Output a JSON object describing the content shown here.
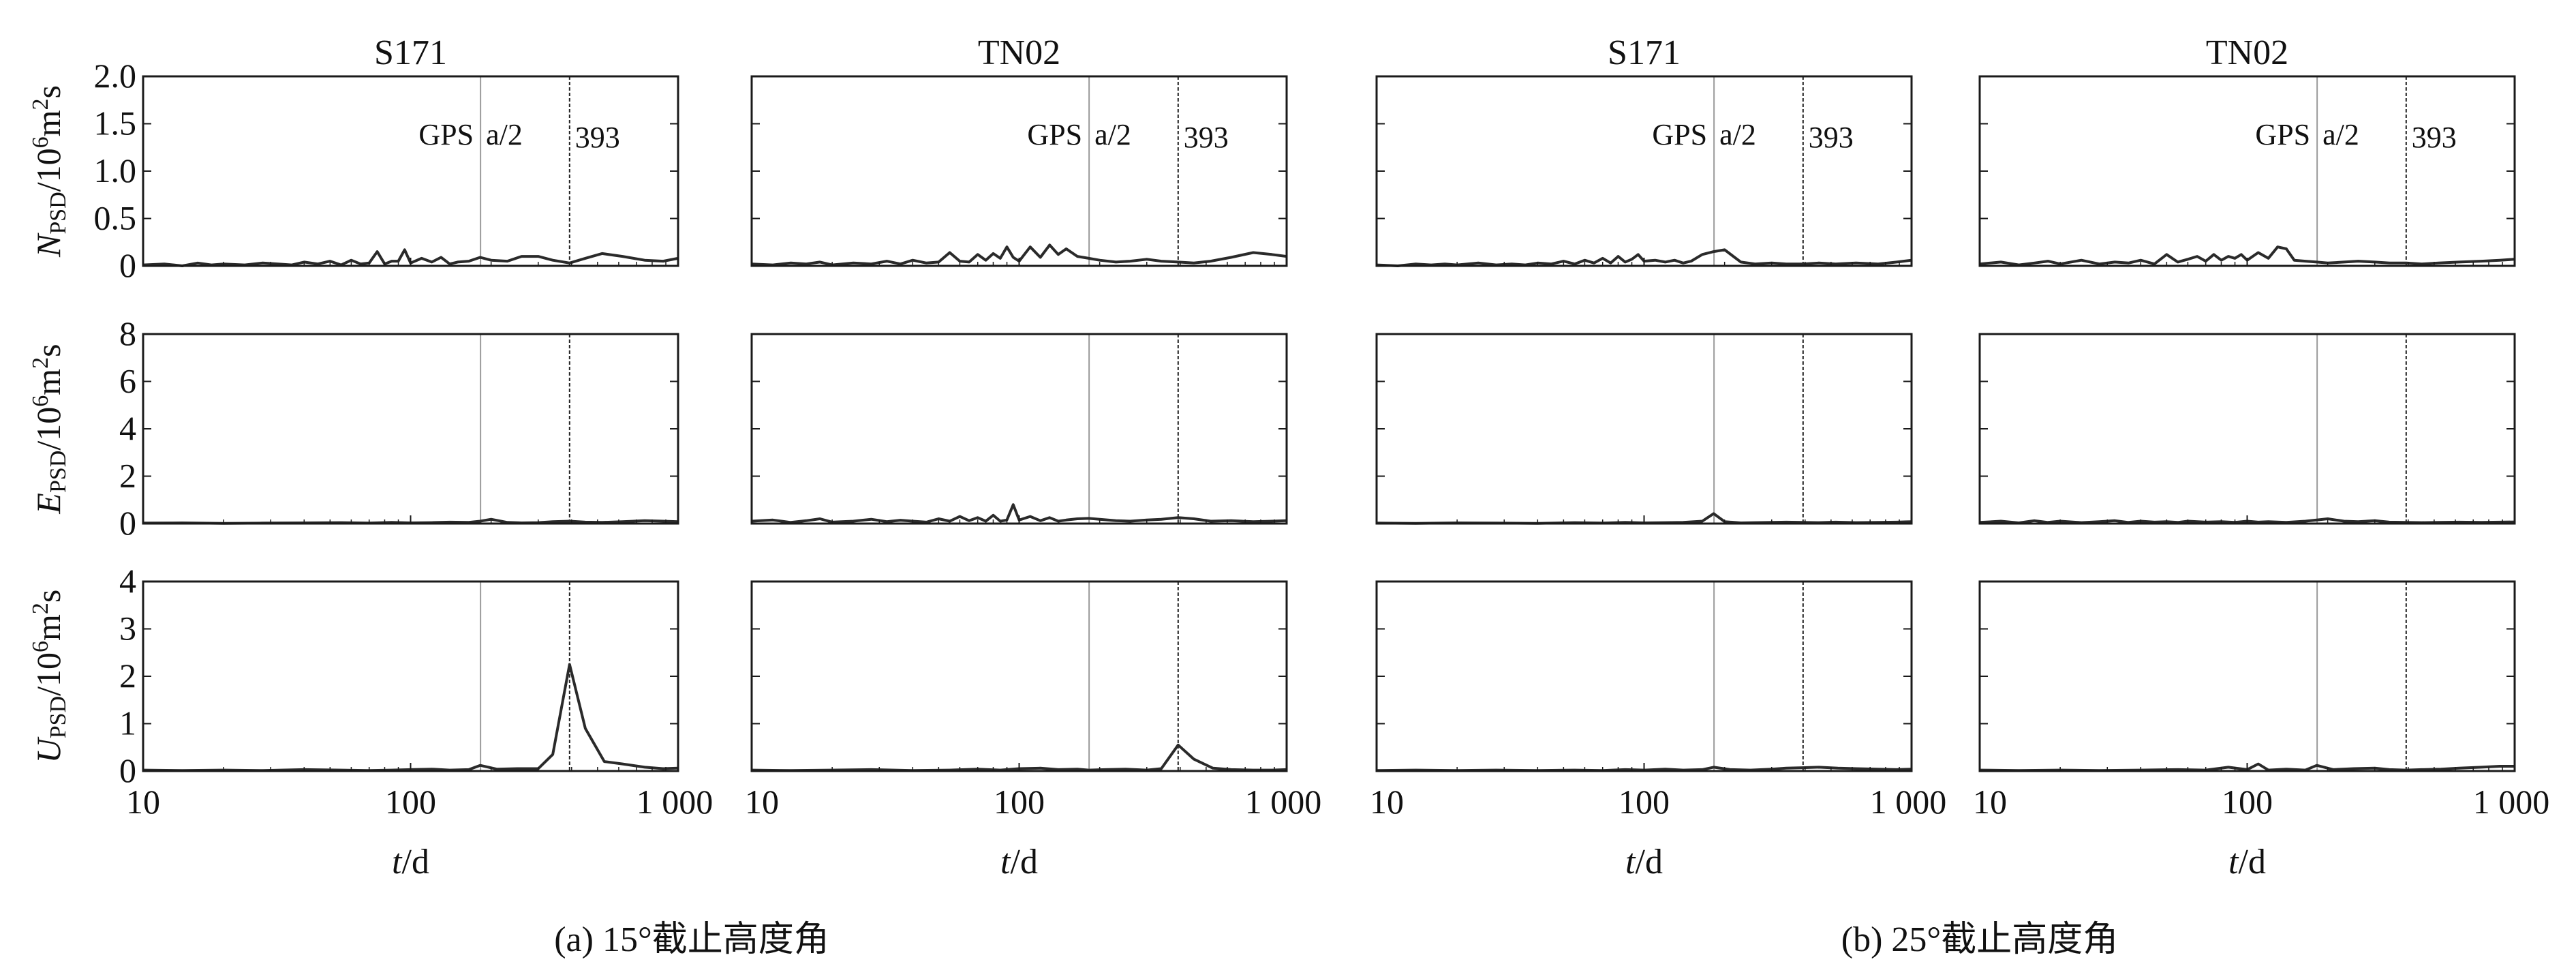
{
  "figure": {
    "caption_a": "(a) 15°截止高度角",
    "caption_b": "(b) 25°截止高度角",
    "x_axis_title": "t/d",
    "row_labels": [
      {
        "main": "N",
        "sub": "PSD",
        "rest": "/10",
        "sup": "6",
        "unit": "m",
        "unit_sup": "2",
        "tail": "s"
      },
      {
        "main": "E",
        "sub": "PSD",
        "rest": "/10",
        "sup": "6",
        "unit": "m",
        "unit_sup": "2",
        "tail": "s"
      },
      {
        "main": "U",
        "sub": "PSD",
        "rest": "/10",
        "sup": "6",
        "unit": "m",
        "unit_sup": "2",
        "tail": "s"
      }
    ],
    "annotations": {
      "gps": "GPS",
      "half": "a/2",
      "period": "393"
    },
    "colors": {
      "line": "#2a2a2a",
      "gps_half_line": "#9a9a9a",
      "period_line": "#222222",
      "axis": "#1a1a1a"
    }
  },
  "chart_data": [
    {
      "type": "line",
      "group": "a",
      "station": "S171",
      "row": "N",
      "x_scale": "log",
      "xlim": [
        10,
        1000
      ],
      "ylim": [
        0,
        2.0
      ],
      "yticks": [
        "0",
        "0.5",
        "1.0",
        "1.5",
        "2.0"
      ],
      "xticks": [
        "10",
        "100",
        "1 000"
      ],
      "xlabel": "t/d",
      "vlines": [
        182.6,
        393
      ],
      "x": [
        10,
        12,
        14,
        16,
        18,
        20,
        24,
        28,
        32,
        36,
        40,
        45,
        50,
        55,
        60,
        65,
        70,
        75,
        80,
        85,
        90,
        95,
        100,
        110,
        120,
        130,
        140,
        150,
        165,
        182,
        200,
        230,
        260,
        300,
        340,
        393,
        450,
        520,
        620,
        750,
        880,
        1000
      ],
      "y": [
        0.01,
        0.02,
        0.0,
        0.03,
        0.01,
        0.02,
        0.01,
        0.03,
        0.02,
        0.01,
        0.04,
        0.02,
        0.05,
        0.01,
        0.06,
        0.02,
        0.03,
        0.15,
        0.02,
        0.05,
        0.05,
        0.17,
        0.03,
        0.08,
        0.04,
        0.09,
        0.02,
        0.04,
        0.05,
        0.09,
        0.06,
        0.05,
        0.1,
        0.1,
        0.06,
        0.03,
        0.08,
        0.13,
        0.1,
        0.06,
        0.05,
        0.08
      ]
    },
    {
      "type": "line",
      "group": "a",
      "station": "TN02",
      "row": "N",
      "x_scale": "log",
      "xlim": [
        10,
        1000
      ],
      "ylim": [
        0,
        2.0
      ],
      "yticks": [
        "0",
        "0.5",
        "1.0",
        "1.5",
        "2.0"
      ],
      "xticks": [
        "10",
        "100",
        "1 000"
      ],
      "xlabel": "t/d",
      "vlines": [
        182.6,
        393
      ],
      "x": [
        10,
        12,
        14,
        16,
        18,
        20,
        24,
        28,
        32,
        36,
        40,
        45,
        50,
        55,
        60,
        65,
        70,
        75,
        80,
        85,
        90,
        95,
        100,
        110,
        120,
        130,
        140,
        150,
        165,
        182,
        200,
        230,
        260,
        300,
        340,
        393,
        450,
        520,
        620,
        750,
        880,
        1000
      ],
      "y": [
        0.02,
        0.01,
        0.03,
        0.02,
        0.04,
        0.01,
        0.03,
        0.02,
        0.05,
        0.02,
        0.06,
        0.03,
        0.04,
        0.14,
        0.05,
        0.04,
        0.12,
        0.06,
        0.13,
        0.08,
        0.2,
        0.09,
        0.05,
        0.2,
        0.09,
        0.22,
        0.12,
        0.18,
        0.1,
        0.08,
        0.06,
        0.04,
        0.05,
        0.07,
        0.05,
        0.04,
        0.03,
        0.05,
        0.09,
        0.14,
        0.12,
        0.1
      ]
    },
    {
      "type": "line",
      "group": "b",
      "station": "S171",
      "row": "N",
      "x_scale": "log",
      "xlim": [
        10,
        1000
      ],
      "ylim": [
        0,
        2.0
      ],
      "yticks": [
        "0",
        "0.5",
        "1.0",
        "1.5",
        "2.0"
      ],
      "xticks": [
        "10",
        "100",
        "1 000"
      ],
      "xlabel": "t/d",
      "vlines": [
        182.6,
        393
      ],
      "x": [
        10,
        12,
        14,
        16,
        18,
        20,
        24,
        28,
        32,
        36,
        40,
        45,
        50,
        55,
        60,
        65,
        70,
        75,
        80,
        85,
        90,
        95,
        100,
        110,
        120,
        130,
        140,
        150,
        165,
        182,
        200,
        230,
        260,
        300,
        340,
        393,
        450,
        520,
        620,
        750,
        880,
        1000
      ],
      "y": [
        0.01,
        0.0,
        0.02,
        0.01,
        0.02,
        0.01,
        0.03,
        0.01,
        0.02,
        0.01,
        0.03,
        0.02,
        0.05,
        0.02,
        0.06,
        0.03,
        0.08,
        0.03,
        0.1,
        0.04,
        0.07,
        0.12,
        0.05,
        0.06,
        0.04,
        0.06,
        0.03,
        0.05,
        0.12,
        0.15,
        0.17,
        0.04,
        0.02,
        0.03,
        0.02,
        0.02,
        0.03,
        0.02,
        0.03,
        0.02,
        0.04,
        0.06
      ]
    },
    {
      "type": "line",
      "group": "b",
      "station": "TN02",
      "row": "N",
      "x_scale": "log",
      "xlim": [
        10,
        1000
      ],
      "ylim": [
        0,
        2.0
      ],
      "yticks": [
        "0",
        "0.5",
        "1.0",
        "1.5",
        "2.0"
      ],
      "xticks": [
        "10",
        "100",
        "1 000"
      ],
      "xlabel": "t/d",
      "vlines": [
        182.6,
        393
      ],
      "x": [
        10,
        12,
        14,
        16,
        18,
        20,
        24,
        28,
        32,
        36,
        40,
        45,
        50,
        55,
        60,
        65,
        70,
        75,
        80,
        85,
        90,
        95,
        100,
        110,
        120,
        130,
        140,
        150,
        165,
        182,
        200,
        230,
        260,
        300,
        340,
        393,
        450,
        520,
        620,
        750,
        880,
        1000
      ],
      "y": [
        0.02,
        0.04,
        0.01,
        0.03,
        0.05,
        0.02,
        0.06,
        0.02,
        0.04,
        0.03,
        0.06,
        0.02,
        0.12,
        0.04,
        0.07,
        0.1,
        0.05,
        0.12,
        0.06,
        0.1,
        0.08,
        0.12,
        0.06,
        0.14,
        0.08,
        0.2,
        0.18,
        0.06,
        0.05,
        0.04,
        0.03,
        0.04,
        0.05,
        0.04,
        0.03,
        0.03,
        0.02,
        0.03,
        0.04,
        0.05,
        0.06,
        0.07
      ]
    },
    {
      "type": "line",
      "group": "a",
      "station": "S171",
      "row": "E",
      "x_scale": "log",
      "xlim": [
        10,
        1000
      ],
      "ylim": [
        0,
        8
      ],
      "yticks": [
        "0",
        "2",
        "4",
        "6",
        "8"
      ],
      "xticks": [
        "10",
        "100",
        "1 000"
      ],
      "xlabel": "t/d",
      "vlines": [
        182.6,
        393
      ],
      "x": [
        10,
        14,
        20,
        28,
        40,
        55,
        70,
        85,
        100,
        120,
        140,
        165,
        182,
        200,
        230,
        260,
        300,
        340,
        393,
        450,
        520,
        620,
        750,
        880,
        1000
      ],
      "y": [
        0.02,
        0.03,
        0.01,
        0.02,
        0.03,
        0.04,
        0.02,
        0.05,
        0.03,
        0.04,
        0.06,
        0.05,
        0.1,
        0.18,
        0.05,
        0.03,
        0.04,
        0.08,
        0.1,
        0.06,
        0.05,
        0.08,
        0.12,
        0.1,
        0.08
      ]
    },
    {
      "type": "line",
      "group": "a",
      "station": "TN02",
      "row": "E",
      "x_scale": "log",
      "xlim": [
        10,
        1000
      ],
      "ylim": [
        0,
        8
      ],
      "yticks": [
        "0",
        "2",
        "4",
        "6",
        "8"
      ],
      "xticks": [
        "10",
        "100",
        "1 000"
      ],
      "xlabel": "t/d",
      "vlines": [
        182.6,
        393
      ],
      "x": [
        10,
        12,
        14,
        16,
        18,
        20,
        24,
        28,
        32,
        36,
        40,
        45,
        50,
        55,
        60,
        65,
        70,
        75,
        80,
        85,
        90,
        95,
        100,
        110,
        120,
        130,
        140,
        150,
        165,
        182,
        200,
        230,
        260,
        300,
        340,
        393,
        450,
        520,
        620,
        750,
        880,
        1000
      ],
      "y": [
        0.1,
        0.15,
        0.05,
        0.12,
        0.2,
        0.06,
        0.1,
        0.18,
        0.08,
        0.14,
        0.1,
        0.06,
        0.2,
        0.1,
        0.3,
        0.12,
        0.25,
        0.1,
        0.35,
        0.1,
        0.15,
        0.8,
        0.15,
        0.3,
        0.12,
        0.25,
        0.1,
        0.15,
        0.2,
        0.22,
        0.18,
        0.12,
        0.1,
        0.15,
        0.18,
        0.25,
        0.2,
        0.1,
        0.12,
        0.08,
        0.1,
        0.12
      ]
    },
    {
      "type": "line",
      "group": "b",
      "station": "S171",
      "row": "E",
      "x_scale": "log",
      "xlim": [
        10,
        1000
      ],
      "ylim": [
        0,
        8
      ],
      "yticks": [
        "0",
        "2",
        "4",
        "6",
        "8"
      ],
      "xticks": [
        "10",
        "100",
        "1 000"
      ],
      "xlabel": "t/d",
      "vlines": [
        182.6,
        393
      ],
      "x": [
        10,
        14,
        20,
        28,
        40,
        55,
        70,
        85,
        100,
        120,
        140,
        165,
        182,
        200,
        230,
        260,
        300,
        340,
        393,
        450,
        520,
        620,
        750,
        880,
        1000
      ],
      "y": [
        0.02,
        0.01,
        0.03,
        0.02,
        0.01,
        0.04,
        0.02,
        0.05,
        0.03,
        0.04,
        0.05,
        0.1,
        0.42,
        0.08,
        0.03,
        0.04,
        0.05,
        0.06,
        0.05,
        0.04,
        0.06,
        0.04,
        0.05,
        0.06,
        0.08
      ]
    },
    {
      "type": "line",
      "group": "b",
      "station": "TN02",
      "row": "E",
      "x_scale": "log",
      "xlim": [
        10,
        1000
      ],
      "ylim": [
        0,
        8
      ],
      "yticks": [
        "0",
        "2",
        "4",
        "6",
        "8"
      ],
      "xticks": [
        "10",
        "100",
        "1 000"
      ],
      "xlabel": "t/d",
      "vlines": [
        182.6,
        393
      ],
      "x": [
        10,
        12,
        14,
        16,
        18,
        20,
        24,
        28,
        32,
        36,
        40,
        45,
        50,
        55,
        60,
        70,
        80,
        90,
        100,
        110,
        120,
        140,
        165,
        182,
        200,
        230,
        260,
        300,
        340,
        393,
        450,
        520,
        620,
        750,
        880,
        1000
      ],
      "y": [
        0.05,
        0.1,
        0.03,
        0.12,
        0.05,
        0.1,
        0.04,
        0.08,
        0.12,
        0.05,
        0.1,
        0.06,
        0.08,
        0.05,
        0.1,
        0.06,
        0.08,
        0.05,
        0.1,
        0.06,
        0.08,
        0.05,
        0.1,
        0.15,
        0.2,
        0.1,
        0.08,
        0.12,
        0.06,
        0.05,
        0.04,
        0.05,
        0.06,
        0.05,
        0.06,
        0.07
      ]
    },
    {
      "type": "line",
      "group": "a",
      "station": "S171",
      "row": "U",
      "x_scale": "log",
      "xlim": [
        10,
        1000
      ],
      "ylim": [
        0,
        4
      ],
      "yticks": [
        "0",
        "1",
        "2",
        "3",
        "4"
      ],
      "xticks": [
        "10",
        "100",
        "1 000"
      ],
      "xlabel": "t/d",
      "vlines": [
        182.6,
        393
      ],
      "x": [
        10,
        14,
        20,
        28,
        40,
        55,
        70,
        85,
        100,
        120,
        140,
        165,
        182,
        210,
        250,
        300,
        340,
        393,
        450,
        530,
        620,
        750,
        880,
        1000
      ],
      "y": [
        0.02,
        0.01,
        0.02,
        0.01,
        0.03,
        0.02,
        0.01,
        0.02,
        0.03,
        0.04,
        0.02,
        0.03,
        0.12,
        0.04,
        0.05,
        0.05,
        0.35,
        2.25,
        0.9,
        0.2,
        0.15,
        0.08,
        0.05,
        0.06
      ]
    },
    {
      "type": "line",
      "group": "a",
      "station": "TN02",
      "row": "U",
      "x_scale": "log",
      "xlim": [
        10,
        1000
      ],
      "ylim": [
        0,
        4
      ],
      "yticks": [
        "0",
        "1",
        "2",
        "3",
        "4"
      ],
      "xticks": [
        "10",
        "100",
        "1 000"
      ],
      "xlabel": "t/d",
      "vlines": [
        182.6,
        393
      ],
      "x": [
        10,
        14,
        20,
        28,
        40,
        55,
        70,
        85,
        100,
        120,
        140,
        165,
        182,
        210,
        250,
        300,
        340,
        393,
        450,
        530,
        620,
        750,
        880,
        1000
      ],
      "y": [
        0.02,
        0.01,
        0.02,
        0.03,
        0.01,
        0.02,
        0.04,
        0.02,
        0.05,
        0.06,
        0.03,
        0.04,
        0.02,
        0.03,
        0.04,
        0.02,
        0.05,
        0.55,
        0.25,
        0.06,
        0.03,
        0.02,
        0.02,
        0.03
      ]
    },
    {
      "type": "line",
      "group": "b",
      "station": "S171",
      "row": "U",
      "x_scale": "log",
      "xlim": [
        10,
        1000
      ],
      "ylim": [
        0,
        4
      ],
      "yticks": [
        "0",
        "1",
        "2",
        "3",
        "4"
      ],
      "xticks": [
        "10",
        "100",
        "1 000"
      ],
      "xlabel": "t/d",
      "vlines": [
        182.6,
        393
      ],
      "x": [
        10,
        14,
        20,
        28,
        40,
        55,
        70,
        85,
        100,
        120,
        140,
        165,
        182,
        210,
        250,
        300,
        340,
        393,
        450,
        530,
        620,
        750,
        880,
        1000
      ],
      "y": [
        0.01,
        0.02,
        0.01,
        0.02,
        0.01,
        0.02,
        0.01,
        0.03,
        0.02,
        0.04,
        0.02,
        0.03,
        0.08,
        0.03,
        0.02,
        0.04,
        0.06,
        0.07,
        0.08,
        0.06,
        0.05,
        0.04,
        0.03,
        0.04
      ]
    },
    {
      "type": "line",
      "group": "b",
      "station": "TN02",
      "row": "U",
      "x_scale": "log",
      "xlim": [
        10,
        1000
      ],
      "ylim": [
        0,
        4
      ],
      "yticks": [
        "0",
        "1",
        "2",
        "3",
        "4"
      ],
      "xticks": [
        "10",
        "100",
        "1 000"
      ],
      "xlabel": "t/d",
      "vlines": [
        182.6,
        393
      ],
      "x": [
        10,
        14,
        20,
        28,
        40,
        55,
        70,
        85,
        100,
        110,
        120,
        140,
        165,
        182,
        210,
        250,
        300,
        340,
        393,
        450,
        530,
        620,
        750,
        880,
        1000
      ],
      "y": [
        0.02,
        0.01,
        0.02,
        0.01,
        0.02,
        0.03,
        0.02,
        0.08,
        0.03,
        0.15,
        0.02,
        0.04,
        0.02,
        0.12,
        0.03,
        0.05,
        0.06,
        0.03,
        0.02,
        0.03,
        0.04,
        0.06,
        0.08,
        0.1,
        0.1
      ]
    }
  ]
}
